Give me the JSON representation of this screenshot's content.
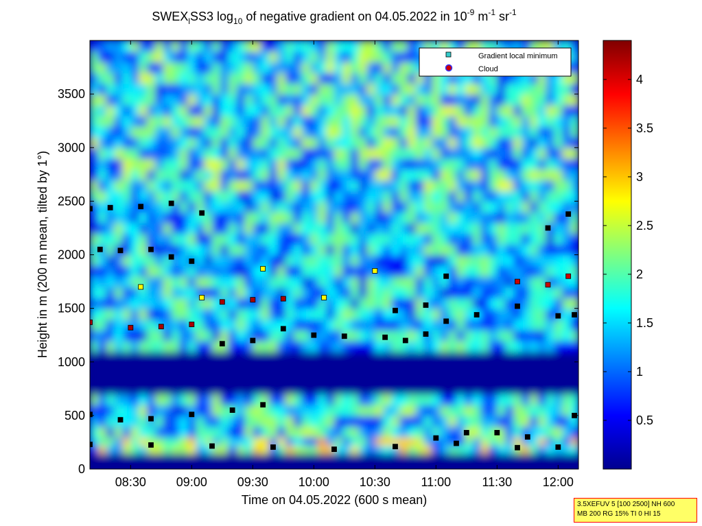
{
  "chart_data": {
    "type": "heatmap",
    "title": {
      "prefix": "SWEX",
      "prefix_sub": "l",
      "middle": "SS3 log",
      "log_sub": "10",
      "rest": " of negative gradient on 04.05.2022 in 10",
      "exp1": "-9",
      "unit_m": " m",
      "exp2": "-1",
      "unit_sr": " sr",
      "exp3": "-1"
    },
    "xlabel": "Time on 04.05.2022 (600 s mean)",
    "ylabel": "Height in m (200 m mean, tilted by 1°)",
    "xlim": [
      "08:10",
      "12:10"
    ],
    "ylim": [
      0,
      4000
    ],
    "x_ticks": [
      "08:30",
      "09:00",
      "09:30",
      "10:00",
      "10:30",
      "11:00",
      "11:30",
      "12:00"
    ],
    "y_ticks": [
      "0",
      "500",
      "1000",
      "1500",
      "2000",
      "2500",
      "3000",
      "3500"
    ],
    "colorbar": {
      "range": [
        0,
        4.4
      ],
      "ticks": [
        "0.5",
        "1",
        "1.5",
        "2",
        "2.5",
        "3",
        "3.5",
        "4"
      ],
      "colormap": "jet"
    },
    "legend": {
      "placement": "top-right",
      "entries": [
        {
          "label": "Gradient local minimum",
          "marker": "square",
          "color": "#33cccc"
        },
        {
          "label": "Cloud",
          "marker": "circle",
          "color": "#cc0000",
          "edge": "#3333ff"
        }
      ]
    },
    "layers": [
      {
        "height_range": [
          0,
          150
        ],
        "level": 0.1
      },
      {
        "height_range": [
          150,
          300
        ],
        "level": 2.3
      },
      {
        "height_range": [
          300,
          700
        ],
        "level": 1.8
      },
      {
        "height_range": [
          700,
          1100
        ],
        "level": 0.1
      },
      {
        "height_range": [
          1100,
          2600
        ],
        "level": 1.7
      },
      {
        "height_range": [
          2600,
          4000
        ],
        "level": 1.9
      }
    ],
    "series": [
      {
        "marker_color": "#000000",
        "x": [
          "08:10",
          "08:40",
          "09:10",
          "09:40",
          "10:10",
          "10:40",
          "11:10",
          "11:40",
          "12:00"
        ],
        "y": [
          230,
          225,
          215,
          205,
          185,
          210,
          240,
          200,
          205
        ]
      },
      {
        "marker_color": "#000000",
        "x": [
          "11:00",
          "11:15",
          "11:30",
          "11:45"
        ],
        "y": [
          290,
          340,
          340,
          300
        ]
      },
      {
        "marker_color": "#000000",
        "x": [
          "08:10",
          "08:25",
          "08:40",
          "09:00",
          "09:20",
          "09:35"
        ],
        "y": [
          510,
          460,
          470,
          510,
          550,
          600
        ]
      },
      {
        "marker_color": "#000000",
        "x": [
          "09:15",
          "09:30",
          "09:45",
          "10:00",
          "10:15",
          "10:35"
        ],
        "y": [
          1170,
          1200,
          1310,
          1250,
          1240,
          1230
        ]
      },
      {
        "marker_color": "#000000",
        "x": [
          "10:45",
          "10:55",
          "11:05",
          "11:20",
          "11:40",
          "12:00",
          "12:08"
        ],
        "y": [
          1200,
          1260,
          1380,
          1440,
          1520,
          1430,
          1440
        ]
      },
      {
        "marker_color": "#aa0000",
        "x": [
          "08:10",
          "08:30",
          "08:45",
          "09:00",
          "09:15",
          "09:30",
          "09:45"
        ],
        "y": [
          1370,
          1320,
          1330,
          1350,
          1560,
          1580,
          1590
        ]
      },
      {
        "marker_color": "#000000",
        "x": [
          "08:15",
          "08:25",
          "08:40",
          "08:50",
          "09:00"
        ],
        "y": [
          2050,
          2040,
          2050,
          1980,
          1940
        ]
      },
      {
        "marker_color": "#000000",
        "x": [
          "08:10",
          "08:20",
          "08:35",
          "08:50",
          "09:05"
        ],
        "y": [
          2430,
          2440,
          2450,
          2480,
          2390
        ]
      },
      {
        "marker_color": "#000000",
        "x": [
          "10:40",
          "10:55",
          "11:05"
        ],
        "y": [
          1480,
          1530,
          1800
        ]
      },
      {
        "marker_color": "#ffff00",
        "x": [
          "08:35",
          "09:05",
          "09:35",
          "10:05",
          "10:30"
        ],
        "y": [
          1700,
          1600,
          1870,
          1600,
          1850
        ]
      },
      {
        "marker_color": "#cc0000",
        "x": [
          "11:40",
          "11:55",
          "12:05"
        ],
        "y": [
          1750,
          1720,
          1800
        ]
      },
      {
        "marker_color": "#000000",
        "x": [
          "12:08",
          "11:55",
          "12:05"
        ],
        "y": [
          500,
          2250,
          2380
        ]
      }
    ]
  },
  "info_box": {
    "line1": "3.5XEFUV 5 [100 2500] NH 600",
    "line2": "MB 200 RG 15% TI 0 HI 15"
  }
}
